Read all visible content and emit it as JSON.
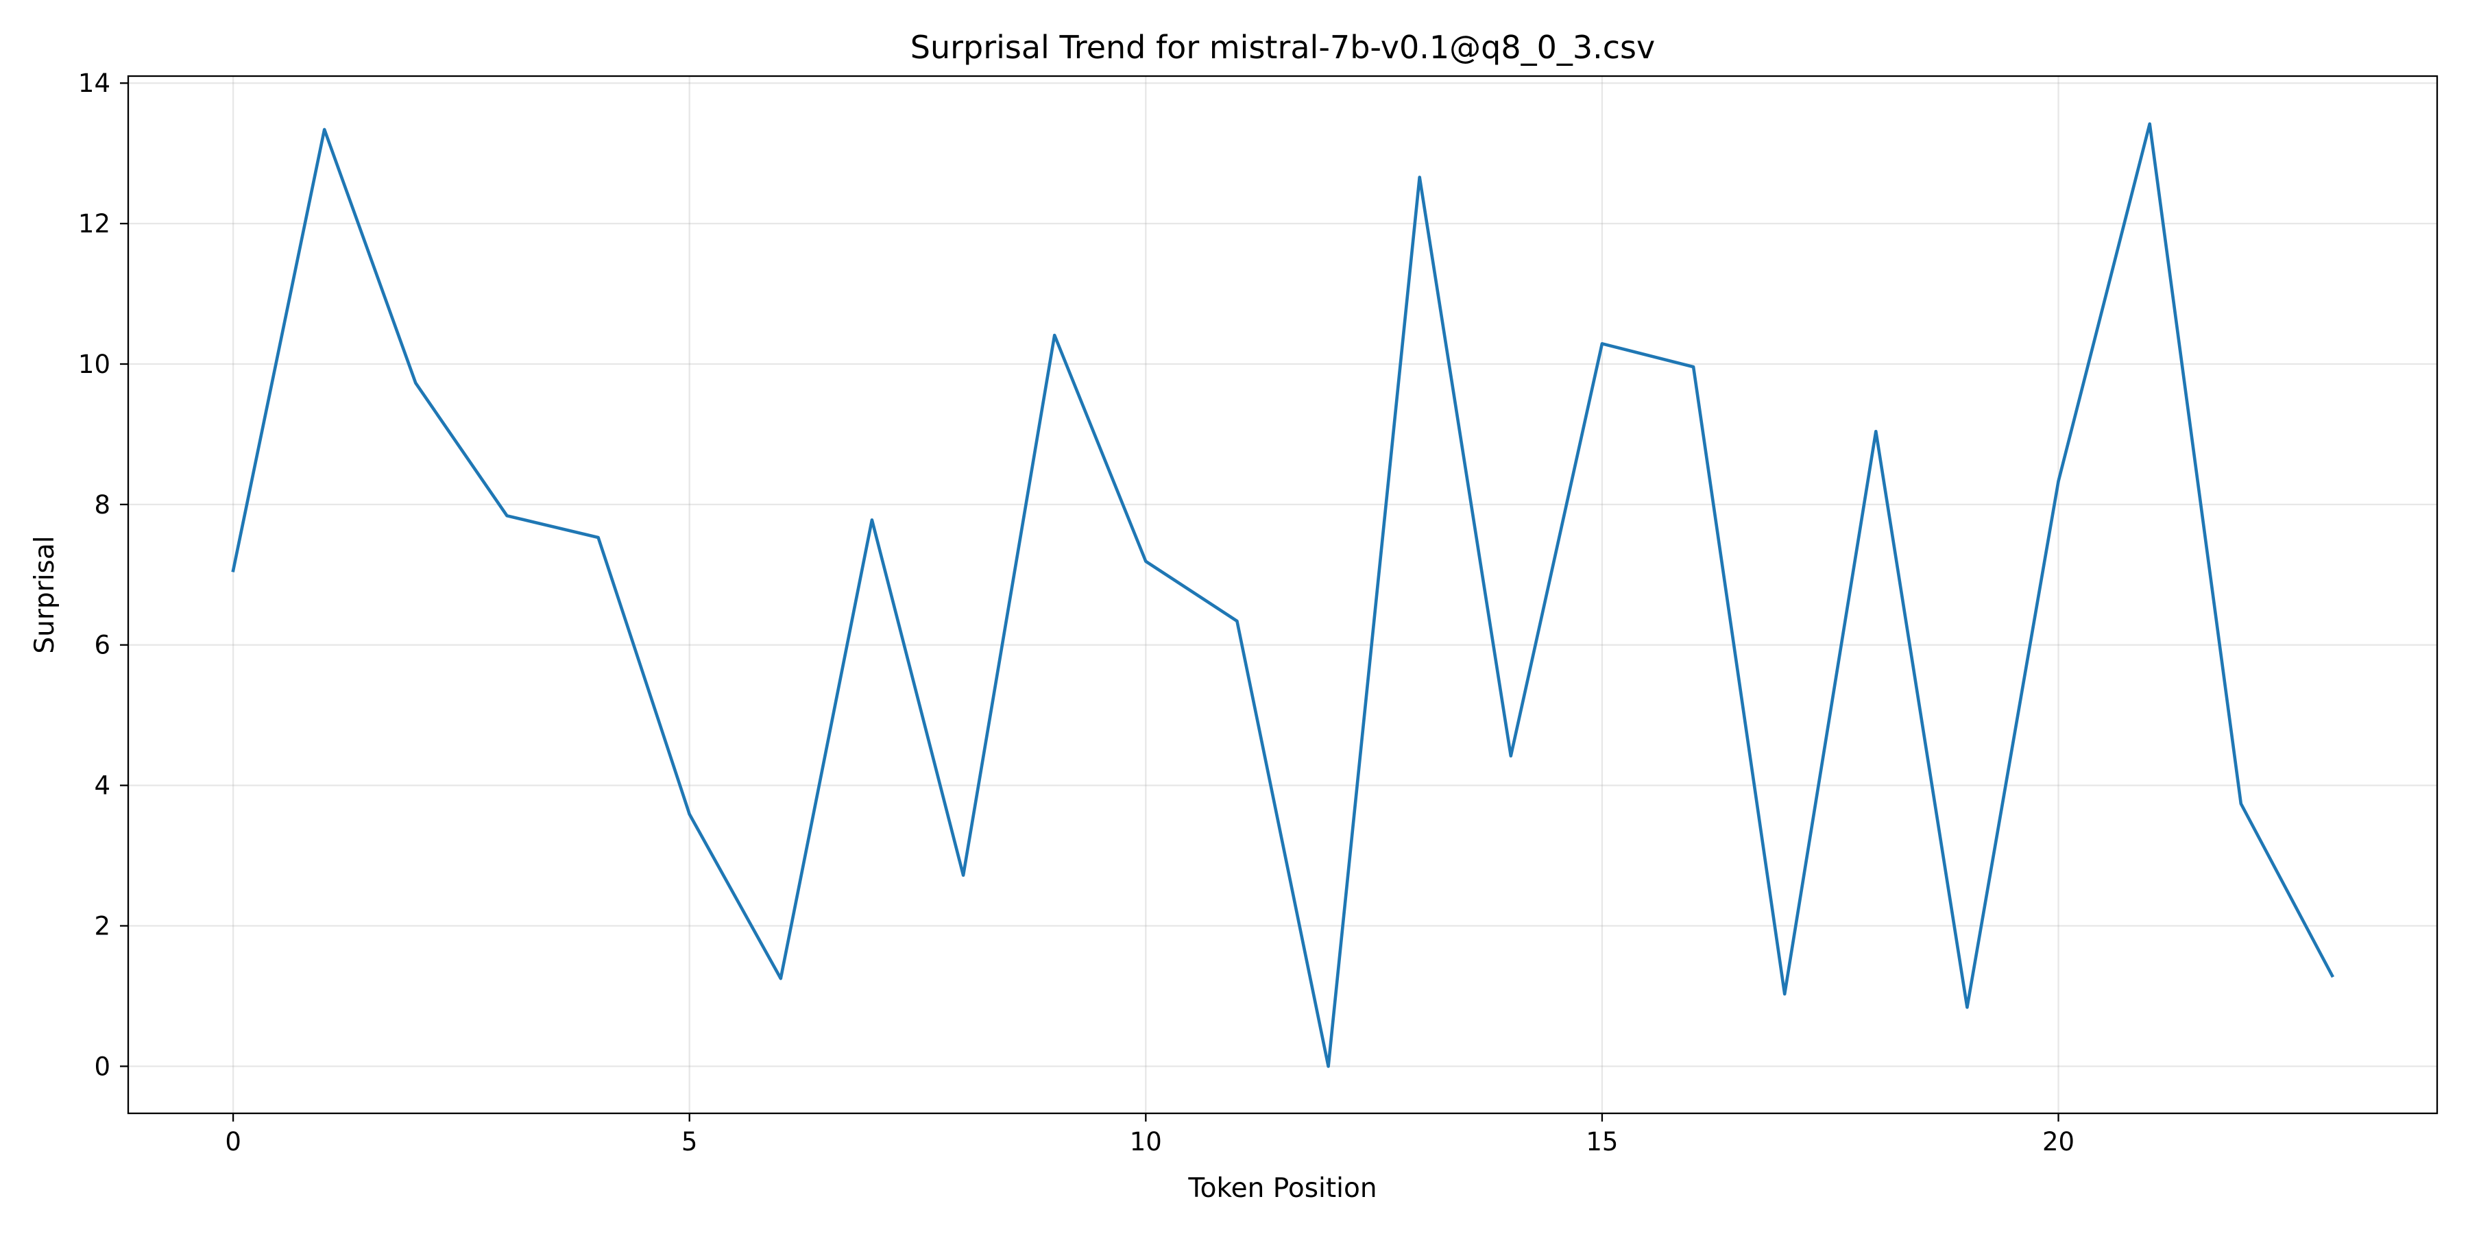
{
  "chart_data": {
    "type": "line",
    "title": "Surprisal Trend for mistral-7b-v0.1@q8_0_3.csv",
    "xlabel": "Token Position",
    "ylabel": "Surprisal",
    "xlim": [
      -1.15,
      24.15
    ],
    "ylim": [
      -0.67,
      14.1
    ],
    "xticks": [
      0,
      5,
      10,
      15,
      20
    ],
    "yticks": [
      0,
      2,
      4,
      6,
      8,
      10,
      12,
      14
    ],
    "grid": true,
    "series": [
      {
        "color": "#1f77b4",
        "x": [
          0,
          1,
          2,
          3,
          4,
          5,
          6,
          7,
          8,
          9,
          10,
          11,
          12,
          13,
          14,
          15,
          16,
          17,
          18,
          19,
          20,
          21,
          22,
          23
        ],
        "values": [
          7.06,
          13.34,
          9.73,
          7.84,
          7.53,
          3.59,
          1.25,
          7.78,
          2.72,
          10.41,
          7.19,
          6.34,
          0.0,
          12.66,
          4.42,
          10.29,
          9.96,
          1.03,
          9.04,
          0.84,
          8.33,
          13.42,
          3.74,
          1.29
        ]
      }
    ]
  }
}
